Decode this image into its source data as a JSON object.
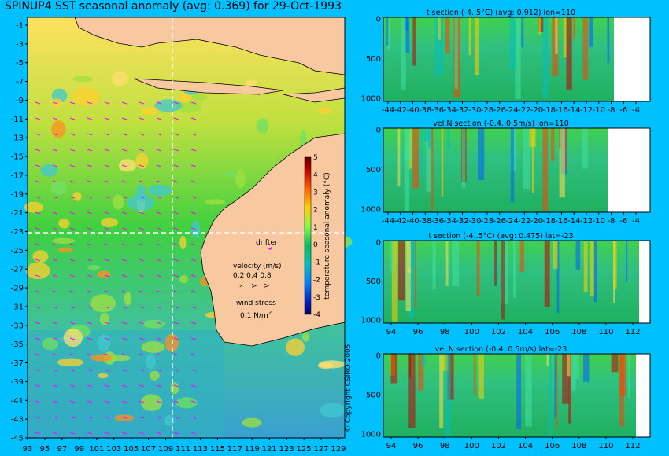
{
  "title": "SPINUP4 SST seasonal anomaly (avg: 0.369) for 29-Oct-1993",
  "copyright": "© Copyright CSIRO 2005",
  "colors": {
    "background": "#00c0ff",
    "land": "#f8c8a0",
    "vector": "#ff00ff",
    "no_data": "#ffffff"
  },
  "map": {
    "lon_ticks": [
      "93",
      "95",
      "97",
      "99",
      "101",
      "103",
      "105",
      "107",
      "109",
      "111",
      "113",
      "115",
      "117",
      "119",
      "121",
      "123",
      "125",
      "127",
      "129"
    ],
    "lat_ticks": [
      "-1",
      "-3",
      "-5",
      "-7",
      "-9",
      "-11",
      "-13",
      "-15",
      "-17",
      "-19",
      "-21",
      "-23",
      "-25",
      "-27",
      "-29",
      "-31",
      "-33",
      "-35",
      "-37",
      "-39",
      "-41",
      "-43",
      "-45"
    ],
    "section_lon": 110,
    "section_lat": -23,
    "colorbar": {
      "label": "temperature seasonal anomaly (°C)",
      "ticks": [
        "5",
        "4",
        "3",
        "2",
        "1",
        "0",
        "-1",
        "-2",
        "-3",
        "-4"
      ],
      "range": [
        -4,
        5
      ]
    },
    "legend": {
      "drifter_label": "drifter",
      "velocity_label": "velocity (m/s)",
      "velocity_values": "0.2 0.4 0.8",
      "wind_label": "wind stress",
      "wind_value": "0.1 N/m",
      "wind_exp": "2"
    }
  },
  "chart_data": [
    {
      "type": "heatmap",
      "title": "t section (-4..5°C) (avg: 0.912) lon=110",
      "x_ticks": [
        "-44",
        "-42",
        "-40",
        "-38",
        "-36",
        "-34",
        "-32",
        "-30",
        "-28",
        "-26",
        "-24",
        "-22",
        "-20",
        "-18",
        "-16",
        "-14",
        "-12",
        "-10",
        "-8",
        "-6",
        "-4"
      ],
      "y_ticks": [
        "0",
        "500",
        "1000"
      ]
    },
    {
      "type": "heatmap",
      "title": "vel.N section (-0.4..0.5m/s) lon=110",
      "x_ticks": [
        "-44",
        "-42",
        "-40",
        "-38",
        "-36",
        "-34",
        "-32",
        "-30",
        "-28",
        "-26",
        "-24",
        "-22",
        "-20",
        "-18",
        "-16",
        "-14",
        "-12",
        "-10",
        "-8",
        "-6",
        "-4"
      ],
      "y_ticks": [
        "0",
        "500",
        "1000"
      ]
    },
    {
      "type": "heatmap",
      "title": "t section (-4..5°C) (avg: 0.475) lat=-23",
      "x_ticks": [
        "94",
        "96",
        "98",
        "100",
        "102",
        "104",
        "106",
        "108",
        "110",
        "112"
      ],
      "y_ticks": [
        "0",
        "500",
        "1000"
      ]
    },
    {
      "type": "heatmap",
      "title": "vel.N section (-0.4..0.5m/s) lat=-23",
      "x_ticks": [
        "94",
        "96",
        "98",
        "100",
        "102",
        "104",
        "106",
        "108",
        "110",
        "112"
      ],
      "y_ticks": [
        "0",
        "500",
        "1000"
      ]
    }
  ]
}
